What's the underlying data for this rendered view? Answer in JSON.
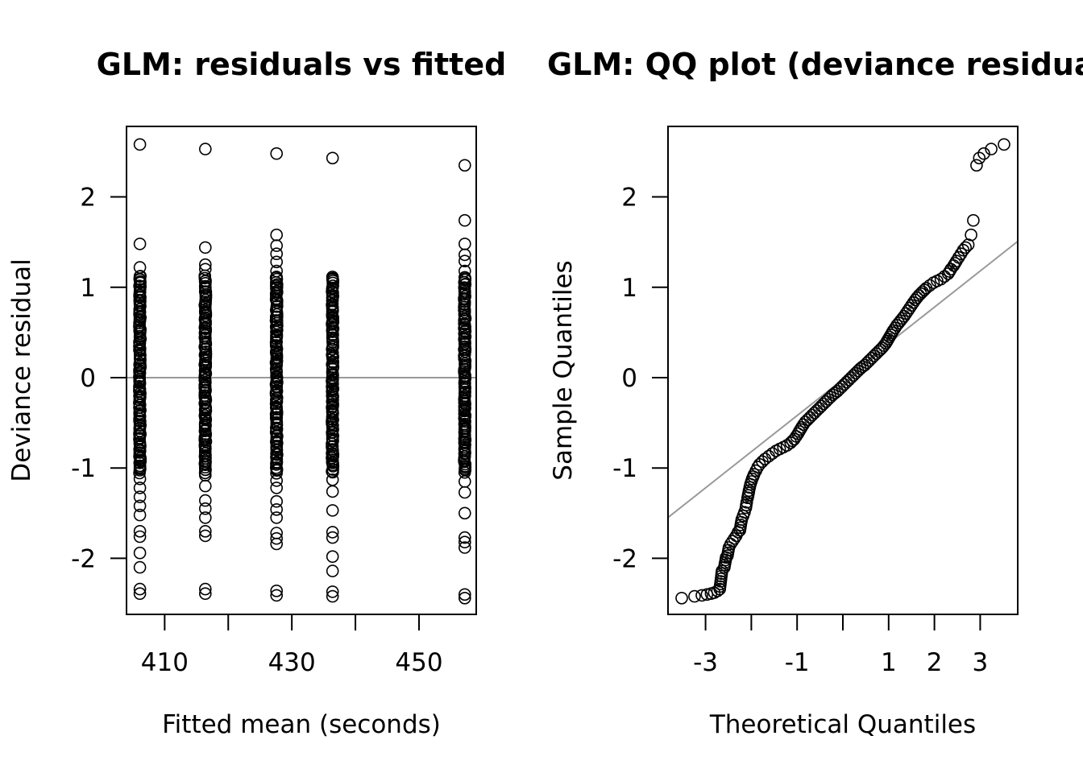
{
  "chart_data": [
    {
      "type": "scatter",
      "title": "GLM: residuals vs fitted",
      "xlabel": "Fitted mean (seconds)",
      "ylabel": "Deviance residual",
      "xlim": [
        404,
        459
      ],
      "ylim": [
        -2.62,
        2.78
      ],
      "x_ticks": [
        410,
        420,
        430,
        440,
        450
      ],
      "x_tick_labels": [
        "410",
        "",
        "430",
        "",
        "450"
      ],
      "y_ticks": [
        -2,
        -1,
        0,
        1,
        2
      ],
      "y_tick_labels": [
        "-2",
        "-1",
        "0",
        "1",
        "2"
      ],
      "reference_line": {
        "type": "horizontal",
        "y": 0,
        "color": "#999999"
      },
      "groups": [
        {
          "x": 406.1,
          "outliers": [
            2.58,
            1.48,
            1.22,
            1.12,
            0.85,
            0.72,
            -1.12,
            -1.22,
            -1.32,
            -1.42,
            -1.52,
            -1.7,
            -1.76,
            -1.94,
            -2.1,
            -2.34,
            -2.39
          ]
        },
        {
          "x": 416.4,
          "outliers": [
            2.53,
            1.44,
            1.25,
            1.2,
            0.95,
            0.72,
            -1.08,
            -1.2,
            -1.36,
            -1.45,
            -1.55,
            -1.7,
            -1.75,
            -2.34,
            -2.39
          ]
        },
        {
          "x": 427.6,
          "outliers": [
            2.48,
            1.58,
            1.46,
            1.37,
            1.28,
            1.18,
            -1.14,
            -1.22,
            -1.37,
            -1.46,
            -1.55,
            -1.72,
            -1.78,
            -1.84,
            -2.36,
            -2.41
          ]
        },
        {
          "x": 436.4,
          "outliers": [
            2.43,
            -1.13,
            -1.26,
            -1.47,
            -1.71,
            -1.77,
            -1.98,
            -2.14,
            -2.37,
            -2.42
          ]
        },
        {
          "x": 457.2,
          "outliers": [
            2.35,
            1.74,
            1.48,
            1.36,
            1.29,
            1.18,
            -1.15,
            -1.27,
            -1.5,
            -1.77,
            -1.82,
            -1.88,
            -2.4,
            -2.44
          ]
        }
      ],
      "dense_band": [
        -1.05,
        1.12
      ]
    },
    {
      "type": "scatter",
      "title": "GLM: QQ plot (deviance residuals)",
      "xlabel": "Theoretical Quantiles",
      "ylabel": "Sample Quantiles",
      "xlim": [
        -3.82,
        3.82
      ],
      "ylim": [
        -2.62,
        2.78
      ],
      "x_ticks": [
        -3,
        -2,
        -1,
        0,
        1,
        2,
        3
      ],
      "x_tick_labels": [
        "-3",
        "",
        "-1",
        "",
        "1",
        "2",
        "3"
      ],
      "y_ticks": [
        -2,
        -1,
        0,
        1,
        2
      ],
      "y_tick_labels": [
        "-2",
        "-1",
        "0",
        "1",
        "2"
      ],
      "reference_line": {
        "type": "qqline",
        "intercept": -0.02,
        "slope": 0.4,
        "color": "#999999"
      },
      "points": [
        [
          -3.52,
          -2.44
        ],
        [
          -3.24,
          -2.42
        ],
        [
          -3.08,
          -2.41
        ],
        [
          -2.97,
          -2.4
        ],
        [
          -2.88,
          -2.39
        ],
        [
          -2.81,
          -2.38
        ],
        [
          -2.74,
          -2.36
        ],
        [
          -2.69,
          -2.34
        ],
        [
          -2.64,
          -2.14
        ],
        [
          -2.59,
          -2.1
        ],
        [
          -2.55,
          -1.99
        ],
        [
          -2.52,
          -1.97
        ],
        [
          -2.49,
          -1.88
        ],
        [
          -2.45,
          -1.84
        ],
        [
          -2.41,
          -1.81
        ],
        [
          -2.37,
          -1.78
        ],
        [
          -2.33,
          -1.75
        ],
        [
          -2.29,
          -1.71
        ],
        [
          -2.25,
          -1.69
        ],
        [
          -2.21,
          -1.57
        ],
        [
          -2.18,
          -1.53
        ],
        [
          -2.15,
          -1.49
        ],
        [
          -2.12,
          -1.44
        ],
        [
          -2.1,
          -1.38
        ],
        [
          -2.08,
          -1.33
        ],
        [
          -2.05,
          -1.25
        ],
        [
          -2.02,
          -1.18
        ],
        [
          -1.98,
          -1.12
        ],
        [
          -1.94,
          -1.07
        ],
        [
          -1.9,
          -1.03
        ],
        [
          -1.86,
          -0.99
        ],
        [
          -1.82,
          -0.96
        ],
        [
          -1.76,
          -0.93
        ],
        [
          -1.7,
          -0.9
        ],
        [
          -1.62,
          -0.87
        ],
        [
          -1.54,
          -0.84
        ],
        [
          -1.46,
          -0.81
        ],
        [
          -1.38,
          -0.79
        ],
        [
          -1.3,
          -0.77
        ],
        [
          -1.22,
          -0.75
        ],
        [
          -1.14,
          -0.72
        ],
        [
          -1.06,
          -0.68
        ],
        [
          -0.98,
          -0.62
        ],
        [
          -0.9,
          -0.55
        ],
        [
          -0.82,
          -0.49
        ],
        [
          -0.72,
          -0.44
        ],
        [
          -0.62,
          -0.39
        ],
        [
          -0.52,
          -0.34
        ],
        [
          -0.42,
          -0.29
        ],
        [
          -0.32,
          -0.24
        ],
        [
          -0.22,
          -0.19
        ],
        [
          -0.12,
          -0.15
        ],
        [
          -0.02,
          -0.1
        ],
        [
          0.08,
          -0.05
        ],
        [
          0.18,
          0.0
        ],
        [
          0.28,
          0.05
        ],
        [
          0.38,
          0.1
        ],
        [
          0.48,
          0.14
        ],
        [
          0.58,
          0.19
        ],
        [
          0.68,
          0.24
        ],
        [
          0.78,
          0.29
        ],
        [
          0.86,
          0.33
        ],
        [
          0.94,
          0.38
        ],
        [
          1.02,
          0.45
        ],
        [
          1.1,
          0.52
        ],
        [
          1.18,
          0.58
        ],
        [
          1.26,
          0.63
        ],
        [
          1.34,
          0.68
        ],
        [
          1.42,
          0.74
        ],
        [
          1.5,
          0.8
        ],
        [
          1.58,
          0.86
        ],
        [
          1.66,
          0.91
        ],
        [
          1.74,
          0.95
        ],
        [
          1.82,
          0.99
        ],
        [
          1.9,
          1.02
        ],
        [
          1.98,
          1.05
        ],
        [
          2.06,
          1.07
        ],
        [
          2.14,
          1.09
        ],
        [
          2.22,
          1.12
        ],
        [
          2.3,
          1.15
        ],
        [
          2.36,
          1.2
        ],
        [
          2.42,
          1.24
        ],
        [
          2.48,
          1.29
        ],
        [
          2.53,
          1.33
        ],
        [
          2.58,
          1.37
        ],
        [
          2.63,
          1.41
        ],
        [
          2.68,
          1.44
        ],
        [
          2.74,
          1.47
        ],
        [
          2.8,
          1.58
        ],
        [
          2.85,
          1.74
        ],
        [
          2.92,
          2.35
        ],
        [
          2.98,
          2.43
        ],
        [
          3.08,
          2.48
        ],
        [
          3.24,
          2.53
        ],
        [
          3.52,
          2.58
        ]
      ]
    }
  ]
}
